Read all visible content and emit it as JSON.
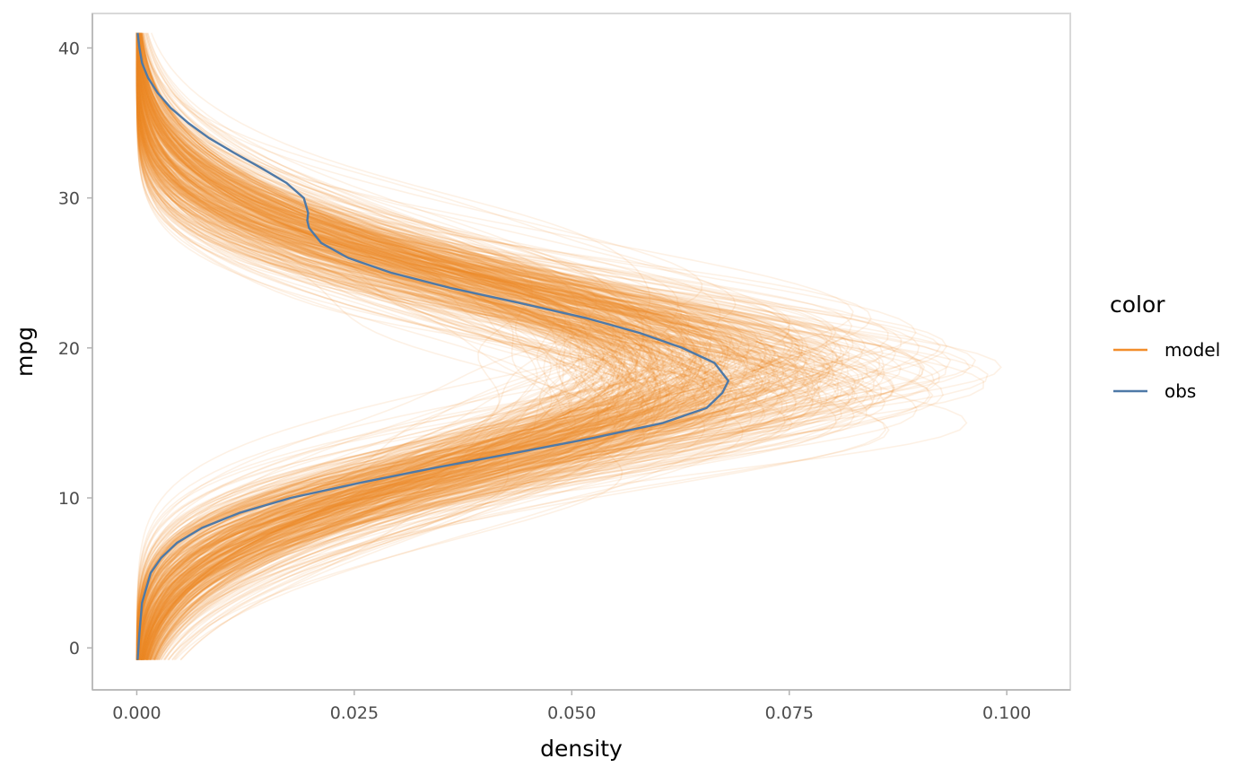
{
  "chart_data": {
    "type": "line",
    "orientation": "horizontal-density",
    "title": "",
    "xlabel": "density",
    "ylabel": "mpg",
    "xlim": [
      -0.0051,
      0.1073
    ],
    "ylim": [
      -2.8,
      42.3
    ],
    "x_ticks": [
      0,
      0.025,
      0.05,
      0.075,
      0.1
    ],
    "x_tick_labels": [
      "0.000",
      "0.025",
      "0.050",
      "0.075",
      "0.100"
    ],
    "y_ticks": [
      0,
      10,
      20,
      30,
      40
    ],
    "y_tick_labels": [
      "0",
      "10",
      "20",
      "30",
      "40"
    ],
    "grid": false,
    "legend": {
      "title": "color",
      "position": "right",
      "entries": [
        {
          "label": "model",
          "color": "#f28e2b"
        },
        {
          "label": "obs",
          "color": "#4e79a7"
        }
      ]
    },
    "series": [
      {
        "name": "obs",
        "color": "#4e79a7",
        "mpg": [
          -0.8,
          1,
          3,
          5,
          6,
          7,
          8,
          9,
          10,
          11,
          12,
          13,
          14,
          15,
          16,
          17,
          17.8,
          19,
          20,
          21,
          22,
          23,
          24,
          25,
          26,
          27,
          28,
          28.5,
          29,
          30,
          31,
          32,
          33,
          34,
          35,
          36,
          37,
          38,
          39,
          40,
          41
        ],
        "density": [
          0.0001,
          0.0003,
          0.0006,
          0.0016,
          0.0028,
          0.0046,
          0.0075,
          0.0118,
          0.0177,
          0.0256,
          0.0342,
          0.0435,
          0.0525,
          0.0605,
          0.0655,
          0.0673,
          0.068,
          0.0664,
          0.0627,
          0.0578,
          0.0516,
          0.044,
          0.036,
          0.0293,
          0.0243,
          0.0212,
          0.0198,
          0.0196,
          0.0197,
          0.0192,
          0.0172,
          0.0143,
          0.0112,
          0.0083,
          0.0059,
          0.0039,
          0.0024,
          0.0013,
          0.0006,
          0.0003,
          0.0001
        ]
      },
      {
        "name": "model",
        "color": "#f28e2b",
        "draws": 500,
        "mean_mpg": 18.4,
        "mean_sd": 6.0,
        "mpg_range": [
          -0.8,
          41
        ]
      }
    ]
  }
}
